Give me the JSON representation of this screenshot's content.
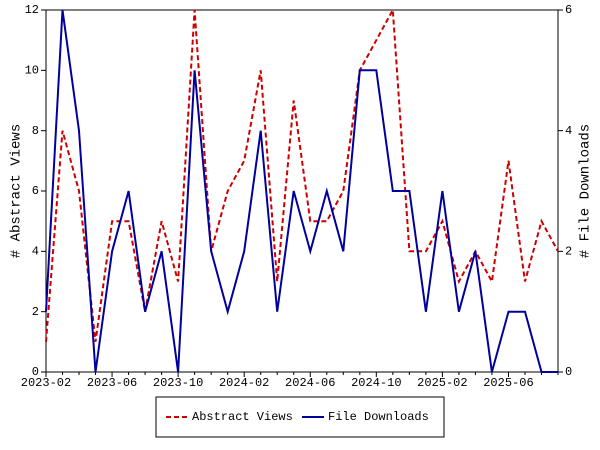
{
  "chart_data": {
    "type": "line",
    "categories": [
      "2023-02",
      null,
      null,
      null,
      "2023-06",
      null,
      null,
      null,
      "2023-10",
      null,
      null,
      null,
      "2024-02",
      null,
      null,
      null,
      "2024-06",
      null,
      null,
      null,
      "2024-10",
      null,
      null,
      null,
      "2025-02",
      null,
      null,
      null,
      "2025-06",
      null,
      null,
      null
    ],
    "series": [
      {
        "name": "Abstract Views",
        "color": "#cc0000",
        "dashed": true,
        "values": [
          1,
          8,
          6,
          1,
          5,
          5,
          2,
          5,
          3,
          12,
          4,
          6,
          7,
          10,
          3,
          9,
          5,
          5,
          6,
          10,
          11,
          12,
          4,
          4,
          5,
          3,
          4,
          3,
          7,
          3,
          5,
          4
        ]
      },
      {
        "name": "File Downloads",
        "color": "#00009c",
        "axis": "y2",
        "values": [
          1,
          6,
          4,
          0,
          2,
          3,
          1,
          2,
          0,
          5,
          2,
          1,
          2,
          4,
          1,
          3,
          2,
          3,
          2,
          5,
          5,
          3,
          3,
          1,
          3,
          1,
          2,
          0,
          1,
          1,
          0,
          0
        ]
      }
    ],
    "ylabel": "# Abstract Views",
    "y2label": "# File Downloads",
    "ylim": [
      0,
      12
    ],
    "yticks": [
      0,
      2,
      4,
      6,
      8,
      10,
      12
    ],
    "y2lim": [
      0,
      6
    ],
    "y2ticks": [
      0,
      2,
      4,
      6
    ],
    "legend": "bottom"
  }
}
